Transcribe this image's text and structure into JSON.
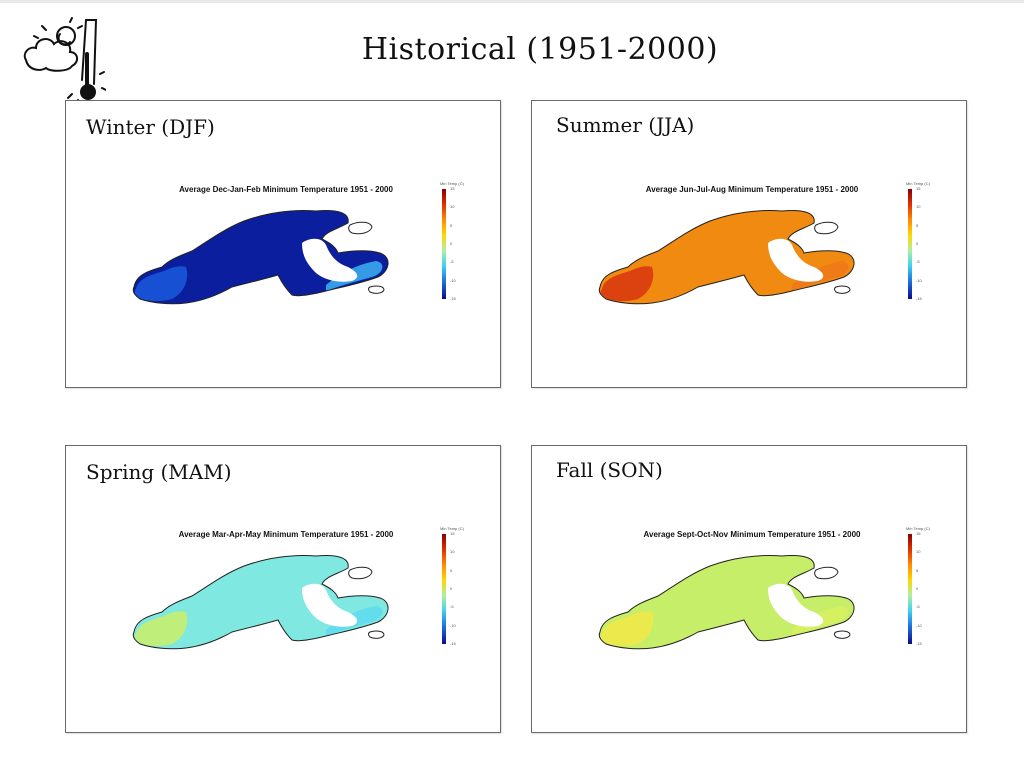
{
  "page": {
    "title": "Historical (1951-2000)"
  },
  "logo": {
    "icon": "weather-thermometer-icon"
  },
  "colorscale": {
    "legend_title": "Min Temp (C)",
    "ticks": [
      "15",
      "10",
      "5",
      "0",
      "-5",
      "-10",
      "-15"
    ],
    "stops": [
      "#8b0000",
      "#e03000",
      "#ff8c00",
      "#ffd700",
      "#aef0a0",
      "#40d0f0",
      "#1e70e0",
      "#0a0a90"
    ]
  },
  "panels": {
    "winter": {
      "label": "Winter (DJF)",
      "map_title": "Average Dec-Jan-Feb Minimum Temperature 1951 - 2000",
      "fill_main": "#0b1f9e",
      "fill_west": "#1a55d8",
      "fill_east": "#3aa8ee"
    },
    "summer": {
      "label": "Summer (JJA)",
      "map_title": "Average Jun-Jul-Aug Minimum Temperature 1951 - 2000",
      "fill_main": "#f08a10",
      "fill_west": "#d83a10",
      "fill_east": "#f07818"
    },
    "spring": {
      "label": "Spring (MAM)",
      "map_title": "Average Mar-Apr-May Minimum Temperature 1951 - 2000",
      "fill_main": "#7fe8e0",
      "fill_west": "#c8ee70",
      "fill_east": "#60dcee"
    },
    "fall": {
      "label": "Fall (SON)",
      "map_title": "Average Sept-Oct-Nov Minimum Temperature 1951 - 2000",
      "fill_main": "#c6ee68",
      "fill_west": "#f0e84a",
      "fill_east": "#d8f060"
    }
  }
}
